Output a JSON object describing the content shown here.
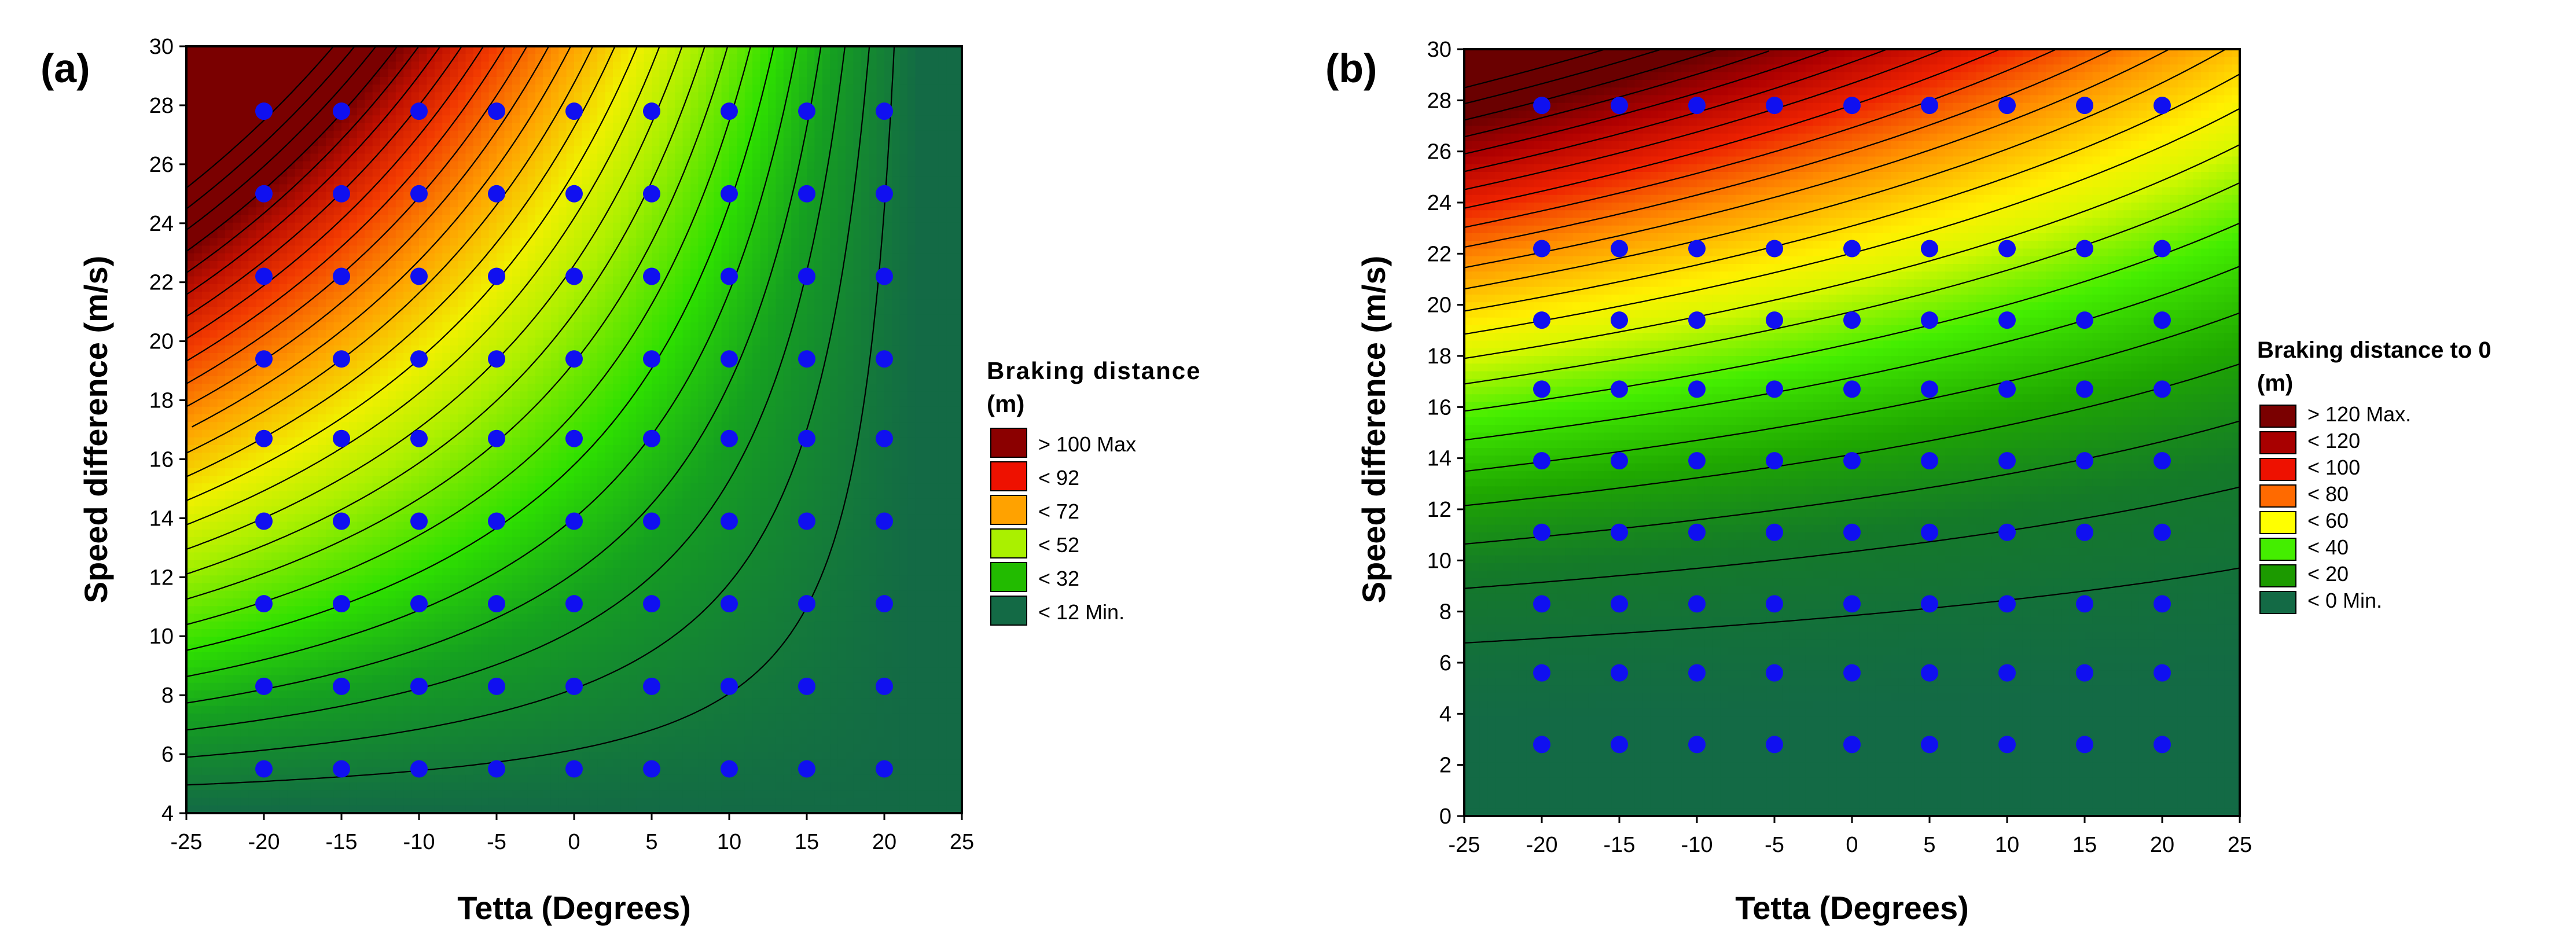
{
  "figure": {
    "panels": [
      {
        "panel_label": "(a)",
        "title": "",
        "xlabel": "Tetta (Degrees)",
        "ylabel": "Speed difference (m/s)",
        "legend": {
          "title_line1": "Braking distance",
          "title_line2": "(m)",
          "placement": "right",
          "entries": [
            {
              "label": "> 100 Max",
              "color": "#8B0000"
            },
            {
              "label": "< 92",
              "color": "#EE1100"
            },
            {
              "label": "< 72",
              "color": "#FFA200"
            },
            {
              "label": "< 52",
              "color": "#AAF000"
            },
            {
              "label": "< 32",
              "color": "#22BB00"
            },
            {
              "label": "< 12 Min.",
              "color": "#136A45"
            }
          ]
        }
      },
      {
        "panel_label": "(b)",
        "title": "",
        "xlabel": "Tetta (Degrees)",
        "ylabel": "Speed difference (m/s)",
        "legend": {
          "title_line1": "Braking distance to 0",
          "title_line2": "(m)",
          "placement": "right",
          "entries": [
            {
              "label": "> 120 Max.",
              "color": "#7A0000"
            },
            {
              "label": "< 120",
              "color": "#A80000"
            },
            {
              "label": "< 100",
              "color": "#EE1100"
            },
            {
              "label": "< 80",
              "color": "#FF6A00"
            },
            {
              "label": "< 60",
              "color": "#FFFF00"
            },
            {
              "label": "< 40",
              "color": "#44EE00"
            },
            {
              "label": "< 20",
              "color": "#1C9A00"
            },
            {
              "label": "< 0   Min.",
              "color": "#136A45"
            }
          ]
        }
      }
    ]
  },
  "chart_data": [
    {
      "type": "heatmap",
      "title": "",
      "xlabel": "Tetta (Degrees)",
      "ylabel": "Speed difference (m/s)",
      "xlim": [
        -25,
        25
      ],
      "ylim": [
        4,
        30
      ],
      "x_ticks": [
        -25,
        -20,
        -15,
        -10,
        -5,
        0,
        5,
        10,
        15,
        20,
        25
      ],
      "y_ticks": [
        4,
        6,
        8,
        10,
        12,
        14,
        16,
        18,
        20,
        22,
        24,
        26,
        28,
        30
      ],
      "z_label": "Braking distance (m)",
      "z_range": [
        12,
        100
      ],
      "contour_step": 4,
      "color_scale": [
        {
          "z": 12,
          "color": "#136A45"
        },
        {
          "z": 26,
          "color": "#15A020"
        },
        {
          "z": 36,
          "color": "#2EE000"
        },
        {
          "z": 50,
          "color": "#AEF000"
        },
        {
          "z": 60,
          "color": "#F0F000"
        },
        {
          "z": 72,
          "color": "#FFA000"
        },
        {
          "z": 86,
          "color": "#F23A00"
        },
        {
          "z": 96,
          "color": "#C01000"
        },
        {
          "z": 104,
          "color": "#7A0000"
        }
      ],
      "sample_points": {
        "x": [
          -20,
          -15,
          -10,
          -5,
          0,
          5,
          10,
          15,
          20
        ],
        "y": [
          5.5,
          8.3,
          11.1,
          13.9,
          16.7,
          19.4,
          22.2,
          25.0,
          27.8
        ],
        "marker_color": "#1010F0"
      }
    },
    {
      "type": "heatmap",
      "title": "",
      "xlabel": "Tetta (Degrees)",
      "ylabel": "Speed difference (m/s)",
      "xlim": [
        -25,
        25
      ],
      "ylim": [
        0,
        30
      ],
      "x_ticks": [
        -25,
        -20,
        -15,
        -10,
        -5,
        0,
        5,
        10,
        15,
        20,
        25
      ],
      "y_ticks": [
        0,
        2,
        4,
        6,
        8,
        10,
        12,
        14,
        16,
        18,
        20,
        22,
        24,
        26,
        28,
        30
      ],
      "z_label": "Braking distance to 0 (m)",
      "z_range": [
        0,
        120
      ],
      "contour_step": 6,
      "color_scale": [
        {
          "z": 0,
          "color": "#136A45"
        },
        {
          "z": 14,
          "color": "#147A28"
        },
        {
          "z": 26,
          "color": "#1FA800"
        },
        {
          "z": 40,
          "color": "#44EE00"
        },
        {
          "z": 54,
          "color": "#D8F800"
        },
        {
          "z": 62,
          "color": "#FFF000"
        },
        {
          "z": 80,
          "color": "#FF8C00"
        },
        {
          "z": 96,
          "color": "#EE2200"
        },
        {
          "z": 112,
          "color": "#B00000"
        },
        {
          "z": 126,
          "color": "#6A0000"
        }
      ],
      "sample_points": {
        "x": [
          -20,
          -15,
          -10,
          -5,
          0,
          5,
          10,
          15,
          20
        ],
        "y": [
          2.8,
          5.6,
          8.3,
          11.1,
          13.9,
          16.7,
          19.4,
          22.2,
          27.8
        ],
        "marker_color": "#1010F0"
      }
    }
  ]
}
